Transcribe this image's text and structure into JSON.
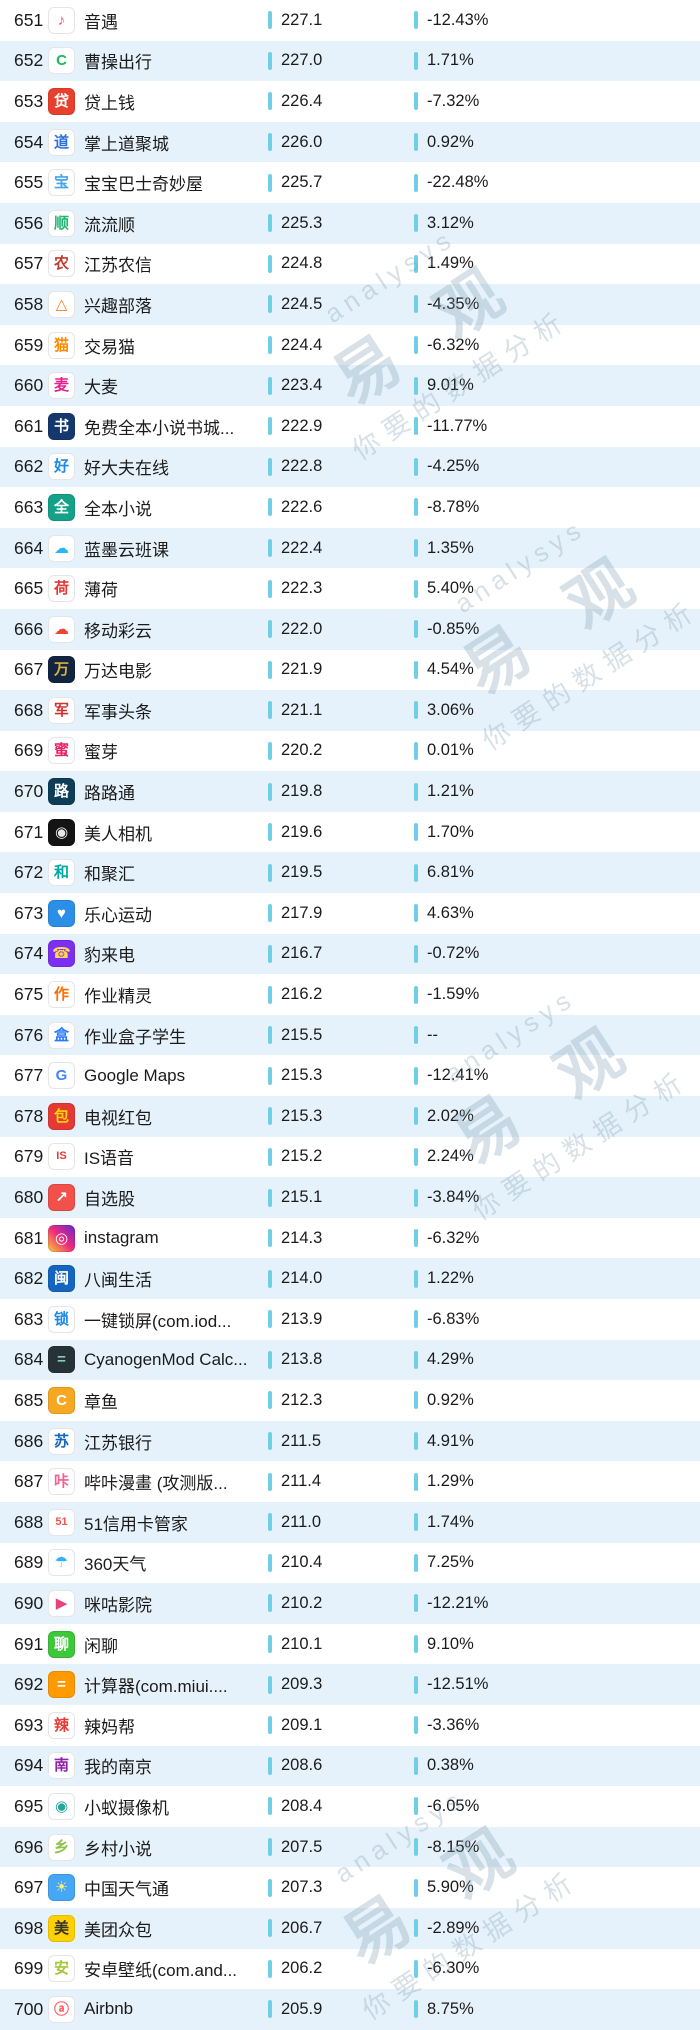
{
  "colors": {
    "accent": "#6fcfe9",
    "row_alt": "#e6f2fb",
    "text": "#1b1b1b",
    "watermark": "rgba(125,155,175,0.30)"
  },
  "watermark": {
    "latin": "analysys",
    "cn_large": "易 观",
    "cn_small": "你要的数据分析"
  },
  "table": {
    "rows": [
      {
        "rank": "651",
        "name": "音遇",
        "value": "227.1",
        "change": "-12.43%",
        "icon": {
          "bg": "#ffffff",
          "glyph": "♪",
          "color": "#ff4d6a"
        }
      },
      {
        "rank": "652",
        "name": "曹操出行",
        "value": "227.0",
        "change": "1.71%",
        "icon": {
          "bg": "#ffffff",
          "glyph": "C",
          "color": "#1eb95c"
        }
      },
      {
        "rank": "653",
        "name": "贷上钱",
        "value": "226.4",
        "change": "-7.32%",
        "icon": {
          "bg": "#e8402d",
          "glyph": "贷",
          "color": "#ffffff"
        }
      },
      {
        "rank": "654",
        "name": "掌上道聚城",
        "value": "226.0",
        "change": "0.92%",
        "icon": {
          "bg": "#ffffff",
          "glyph": "道",
          "color": "#2f6fd6"
        }
      },
      {
        "rank": "655",
        "name": "宝宝巴士奇妙屋",
        "value": "225.7",
        "change": "-22.48%",
        "icon": {
          "bg": "#ffffff",
          "glyph": "宝",
          "color": "#45a6e8"
        }
      },
      {
        "rank": "656",
        "name": "流流顺",
        "value": "225.3",
        "change": "3.12%",
        "icon": {
          "bg": "#ffffff",
          "glyph": "顺",
          "color": "#22b573"
        }
      },
      {
        "rank": "657",
        "name": "江苏农信",
        "value": "224.8",
        "change": "1.49%",
        "icon": {
          "bg": "#ffffff",
          "glyph": "农",
          "color": "#c23a2b"
        }
      },
      {
        "rank": "658",
        "name": "兴趣部落",
        "value": "224.5",
        "change": "-4.35%",
        "icon": {
          "bg": "#ffffff",
          "glyph": "△",
          "color": "#ff7a1a"
        }
      },
      {
        "rank": "659",
        "name": "交易猫",
        "value": "224.4",
        "change": "-6.32%",
        "icon": {
          "bg": "#ffffff",
          "glyph": "猫",
          "color": "#ff8a00"
        }
      },
      {
        "rank": "660",
        "name": "大麦",
        "value": "223.4",
        "change": "9.01%",
        "icon": {
          "bg": "#ffffff",
          "glyph": "麦",
          "color": "#e91e8c"
        }
      },
      {
        "rank": "661",
        "name": "免费全本小说书城...",
        "value": "222.9",
        "change": "-11.77%",
        "icon": {
          "bg": "#14386e",
          "glyph": "书",
          "color": "#ffffff"
        }
      },
      {
        "rank": "662",
        "name": "好大夫在线",
        "value": "222.8",
        "change": "-4.25%",
        "icon": {
          "bg": "#ffffff",
          "glyph": "好",
          "color": "#1e88e5"
        }
      },
      {
        "rank": "663",
        "name": "全本小说",
        "value": "222.6",
        "change": "-8.78%",
        "icon": {
          "bg": "#13a287",
          "glyph": "全",
          "color": "#ffffff"
        }
      },
      {
        "rank": "664",
        "name": "蓝墨云班课",
        "value": "222.4",
        "change": "1.35%",
        "icon": {
          "bg": "#ffffff",
          "glyph": "☁",
          "color": "#29b6f6"
        }
      },
      {
        "rank": "665",
        "name": "薄荷",
        "value": "222.3",
        "change": "5.40%",
        "icon": {
          "bg": "#ffffff",
          "glyph": "荷",
          "color": "#e53935"
        }
      },
      {
        "rank": "666",
        "name": "移动彩云",
        "value": "222.0",
        "change": "-0.85%",
        "icon": {
          "bg": "#ffffff",
          "glyph": "☁",
          "color": "#ef4136"
        }
      },
      {
        "rank": "667",
        "name": "万达电影",
        "value": "221.9",
        "change": "4.54%",
        "icon": {
          "bg": "#132441",
          "glyph": "万",
          "color": "#d8b23c"
        }
      },
      {
        "rank": "668",
        "name": "军事头条",
        "value": "221.1",
        "change": "3.06%",
        "icon": {
          "bg": "#ffffff",
          "glyph": "军",
          "color": "#d32f2f"
        }
      },
      {
        "rank": "669",
        "name": "蜜芽",
        "value": "220.2",
        "change": "0.01%",
        "icon": {
          "bg": "#ffffff",
          "glyph": "蜜",
          "color": "#e91e63"
        }
      },
      {
        "rank": "670",
        "name": "路路通",
        "value": "219.8",
        "change": "1.21%",
        "icon": {
          "bg": "#0e3d58",
          "glyph": "路",
          "color": "#ffffff"
        }
      },
      {
        "rank": "671",
        "name": "美人相机",
        "value": "219.6",
        "change": "1.70%",
        "icon": {
          "bg": "#141414",
          "glyph": "◉",
          "color": "#e8e8e8"
        }
      },
      {
        "rank": "672",
        "name": "和聚汇",
        "value": "219.5",
        "change": "6.81%",
        "icon": {
          "bg": "#ffffff",
          "glyph": "和",
          "color": "#00a89d"
        }
      },
      {
        "rank": "673",
        "name": "乐心运动",
        "value": "217.9",
        "change": "4.63%",
        "icon": {
          "bg": "#2b8fe8",
          "glyph": "♥",
          "color": "#ffffff"
        }
      },
      {
        "rank": "674",
        "name": "豹来电",
        "value": "216.7",
        "change": "-0.72%",
        "icon": {
          "bg": "#7b2ff2",
          "glyph": "☎",
          "color": "#ffd54f"
        }
      },
      {
        "rank": "675",
        "name": "作业精灵",
        "value": "216.2",
        "change": "-1.59%",
        "icon": {
          "bg": "#ffffff",
          "glyph": "作",
          "color": "#ff6d00"
        }
      },
      {
        "rank": "676",
        "name": "作业盒子学生",
        "value": "215.5",
        "change": "--",
        "icon": {
          "bg": "#ffffff",
          "glyph": "盒",
          "color": "#2979ff"
        }
      },
      {
        "rank": "677",
        "name": "Google Maps",
        "value": "215.3",
        "change": "-12.41%",
        "icon": {
          "bg": "#ffffff",
          "glyph": "G",
          "color": "#4285f4"
        }
      },
      {
        "rank": "678",
        "name": "电视红包",
        "value": "215.3",
        "change": "2.02%",
        "icon": {
          "bg": "#e53935",
          "glyph": "包",
          "color": "#ffd700"
        }
      },
      {
        "rank": "679",
        "name": "IS语音",
        "value": "215.2",
        "change": "2.24%",
        "icon": {
          "bg": "#ffffff",
          "glyph": "IS",
          "color": "#e53935"
        }
      },
      {
        "rank": "680",
        "name": "自选股",
        "value": "215.1",
        "change": "-3.84%",
        "icon": {
          "bg": "#f2504b",
          "glyph": "↗",
          "color": "#ffffff"
        }
      },
      {
        "rank": "681",
        "name": "instagram",
        "value": "214.3",
        "change": "-6.32%",
        "icon": {
          "bg": "linear-gradient(45deg,#f9ce34,#ee2a7b,#6228d7)",
          "glyph": "◎",
          "color": "#ffffff"
        }
      },
      {
        "rank": "682",
        "name": "八闽生活",
        "value": "214.0",
        "change": "1.22%",
        "icon": {
          "bg": "#1565c0",
          "glyph": "闽",
          "color": "#ffffff"
        }
      },
      {
        "rank": "683",
        "name": "一键锁屏(com.iod...",
        "value": "213.9",
        "change": "-6.83%",
        "icon": {
          "bg": "#ffffff",
          "glyph": "锁",
          "color": "#1e88e5"
        }
      },
      {
        "rank": "684",
        "name": "CyanogenMod Calc...",
        "value": "213.8",
        "change": "4.29%",
        "icon": {
          "bg": "#263238",
          "glyph": "=",
          "color": "#80cbc4"
        }
      },
      {
        "rank": "685",
        "name": "章鱼",
        "value": "212.3",
        "change": "0.92%",
        "icon": {
          "bg": "#f7a823",
          "glyph": "C",
          "color": "#ffffff"
        }
      },
      {
        "rank": "686",
        "name": "江苏银行",
        "value": "211.5",
        "change": "4.91%",
        "icon": {
          "bg": "#ffffff",
          "glyph": "苏",
          "color": "#1565c0"
        }
      },
      {
        "rank": "687",
        "name": "哔咔漫畫 (攻测版...",
        "value": "211.4",
        "change": "1.29%",
        "icon": {
          "bg": "#ffffff",
          "glyph": "咔",
          "color": "#f06292"
        }
      },
      {
        "rank": "688",
        "name": "51信用卡管家",
        "value": "211.0",
        "change": "1.74%",
        "icon": {
          "bg": "#ffffff",
          "glyph": "51",
          "color": "#ef5350"
        }
      },
      {
        "rank": "689",
        "name": "360天气",
        "value": "210.4",
        "change": "7.25%",
        "icon": {
          "bg": "#ffffff",
          "glyph": "☂",
          "color": "#29b6f6"
        }
      },
      {
        "rank": "690",
        "name": "咪咕影院",
        "value": "210.2",
        "change": "-12.21%",
        "icon": {
          "bg": "#ffffff",
          "glyph": "▶",
          "color": "#ec407a"
        }
      },
      {
        "rank": "691",
        "name": "闲聊",
        "value": "210.1",
        "change": "9.10%",
        "icon": {
          "bg": "#3ec73a",
          "glyph": "聊",
          "color": "#ffffff"
        }
      },
      {
        "rank": "692",
        "name": "计算器(com.miui....",
        "value": "209.3",
        "change": "-12.51%",
        "icon": {
          "bg": "#ff9a00",
          "glyph": "=",
          "color": "#ffffff"
        }
      },
      {
        "rank": "693",
        "name": "辣妈帮",
        "value": "209.1",
        "change": "-3.36%",
        "icon": {
          "bg": "#ffffff",
          "glyph": "辣",
          "color": "#e53935"
        }
      },
      {
        "rank": "694",
        "name": "我的南京",
        "value": "208.6",
        "change": "0.38%",
        "icon": {
          "bg": "#ffffff",
          "glyph": "南",
          "color": "#8e24aa"
        }
      },
      {
        "rank": "695",
        "name": "小蚁摄像机",
        "value": "208.4",
        "change": "-6.05%",
        "icon": {
          "bg": "#ffffff",
          "glyph": "◉",
          "color": "#26a69a"
        }
      },
      {
        "rank": "696",
        "name": "乡村小说",
        "value": "207.5",
        "change": "-8.15%",
        "icon": {
          "bg": "#ffffff",
          "glyph": "乡",
          "color": "#8bc34a"
        }
      },
      {
        "rank": "697",
        "name": "中国天气通",
        "value": "207.3",
        "change": "5.90%",
        "icon": {
          "bg": "#45a7f5",
          "glyph": "☀",
          "color": "#fff176"
        }
      },
      {
        "rank": "698",
        "name": "美团众包",
        "value": "206.7",
        "change": "-2.89%",
        "icon": {
          "bg": "#ffd100",
          "glyph": "美",
          "color": "#333333"
        }
      },
      {
        "rank": "699",
        "name": "安卓壁纸(com.and...",
        "value": "206.2",
        "change": "-6.30%",
        "icon": {
          "bg": "#ffffff",
          "glyph": "安",
          "color": "#a4c639"
        }
      },
      {
        "rank": "700",
        "name": "Airbnb",
        "value": "205.9",
        "change": "8.75%",
        "icon": {
          "bg": "#ffffff",
          "glyph": "ⓐ",
          "color": "#ff5a5f"
        }
      }
    ]
  }
}
